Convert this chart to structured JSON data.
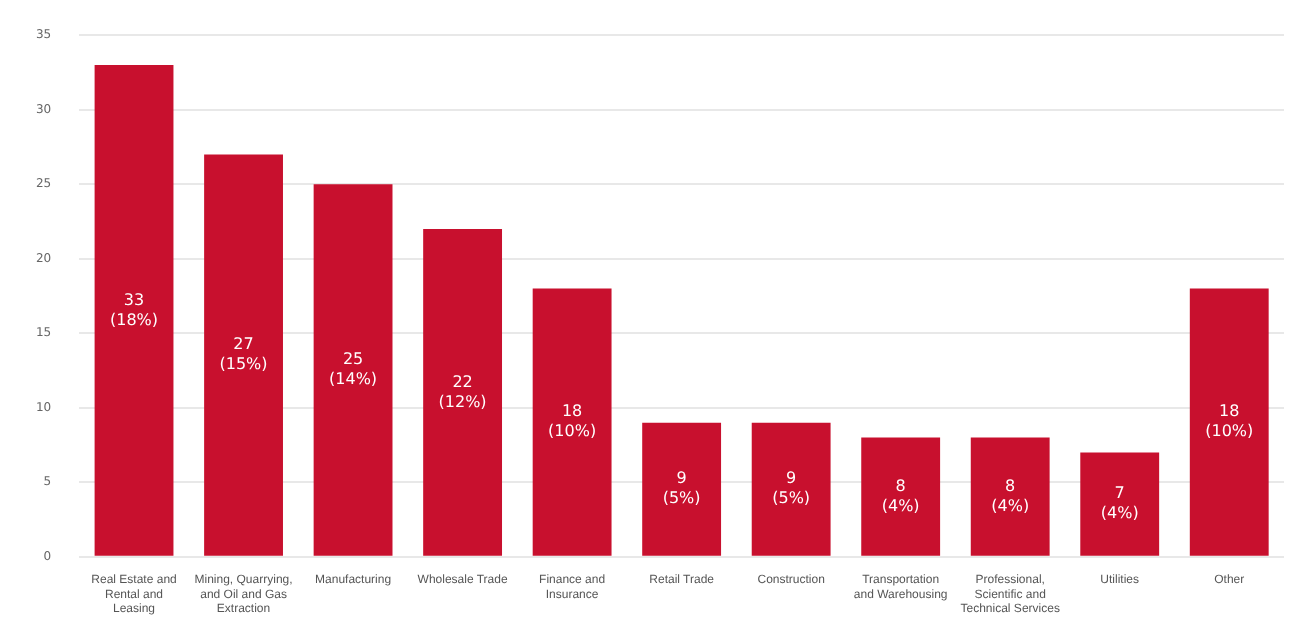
{
  "chart_data": {
    "type": "bar",
    "categories": [
      "Real Estate and Rental and Leasing",
      "Mining, Quarrying, and Oil and Gas Extraction",
      "Manufacturing",
      "Wholesale Trade",
      "Finance and Insurance",
      "Retail Trade",
      "Construction",
      "Transportation and Warehousing",
      "Professional, Scientific and Technical Services",
      "Utilities",
      "Other"
    ],
    "values": [
      33,
      27,
      25,
      22,
      18,
      9,
      9,
      8,
      8,
      7,
      18
    ],
    "value_labels": [
      "33 (18%)",
      "27 (15%)",
      "25 (14%)",
      "22 (12%)",
      "18 (10%)",
      "9 (5%)",
      "9 (5%)",
      "8 (4%)",
      "8 (4%)",
      "7 (4%)",
      "18 (10%)"
    ],
    "color": "#c8102e",
    "ylim": [
      0,
      35
    ],
    "yticks": [
      0,
      5,
      10,
      15,
      20,
      25,
      30,
      35
    ],
    "grid": "y"
  }
}
